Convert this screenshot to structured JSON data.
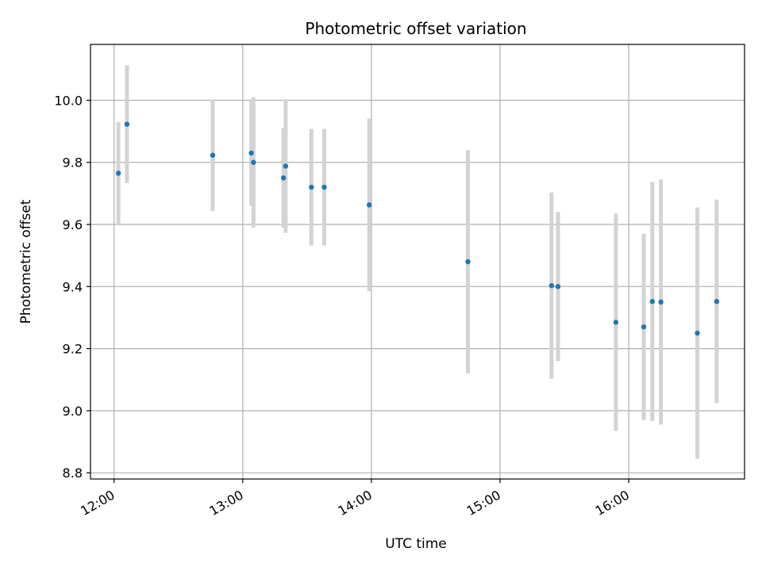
{
  "chart_data": {
    "type": "scatter",
    "title": "Photometric offset variation",
    "xlabel": "UTC time",
    "ylabel": "Photometric offset",
    "x_ticks": [
      "12:00",
      "13:00",
      "14:00",
      "15:00",
      "16:00"
    ],
    "y_ticks": [
      "8.8",
      "9.0",
      "9.2",
      "9.4",
      "9.6",
      "9.8",
      "10.0"
    ],
    "xlim": [
      "11:49",
      "16:54"
    ],
    "ylim": [
      8.78,
      10.18
    ],
    "grid": true,
    "colors": {
      "point": "#1f77b4",
      "errorbar": "#d3d3d3",
      "grid": "#b0b0b0"
    },
    "series": [
      {
        "points": [
          {
            "x": "12:02",
            "y": 9.765,
            "yerr": 0.165
          },
          {
            "x": "12:06",
            "y": 9.923,
            "yerr": 0.19
          },
          {
            "x": "12:46",
            "y": 9.823,
            "yerr": 0.18
          },
          {
            "x": "13:04",
            "y": 9.83,
            "yerr": 0.17
          },
          {
            "x": "13:05",
            "y": 9.8,
            "yerr": 0.21
          },
          {
            "x": "13:19",
            "y": 9.75,
            "yerr": 0.16
          },
          {
            "x": "13:20",
            "y": 9.788,
            "yerr": 0.215
          },
          {
            "x": "13:32",
            "y": 9.72,
            "yerr": 0.188
          },
          {
            "x": "13:38",
            "y": 9.72,
            "yerr": 0.188
          },
          {
            "x": "13:59",
            "y": 9.663,
            "yerr": 0.278
          },
          {
            "x": "14:45",
            "y": 9.48,
            "yerr": 0.36
          },
          {
            "x": "15:24",
            "y": 9.403,
            "yerr": 0.3
          },
          {
            "x": "15:27",
            "y": 9.4,
            "yerr": 0.24
          },
          {
            "x": "15:54",
            "y": 9.285,
            "yerr": 0.35
          },
          {
            "x": "16:07",
            "y": 9.27,
            "yerr": 0.3
          },
          {
            "x": "16:11",
            "y": 9.352,
            "yerr": 0.385
          },
          {
            "x": "16:15",
            "y": 9.35,
            "yerr": 0.395
          },
          {
            "x": "16:32",
            "y": 9.25,
            "yerr": 0.405
          },
          {
            "x": "16:41",
            "y": 9.352,
            "yerr": 0.328
          }
        ]
      }
    ]
  }
}
